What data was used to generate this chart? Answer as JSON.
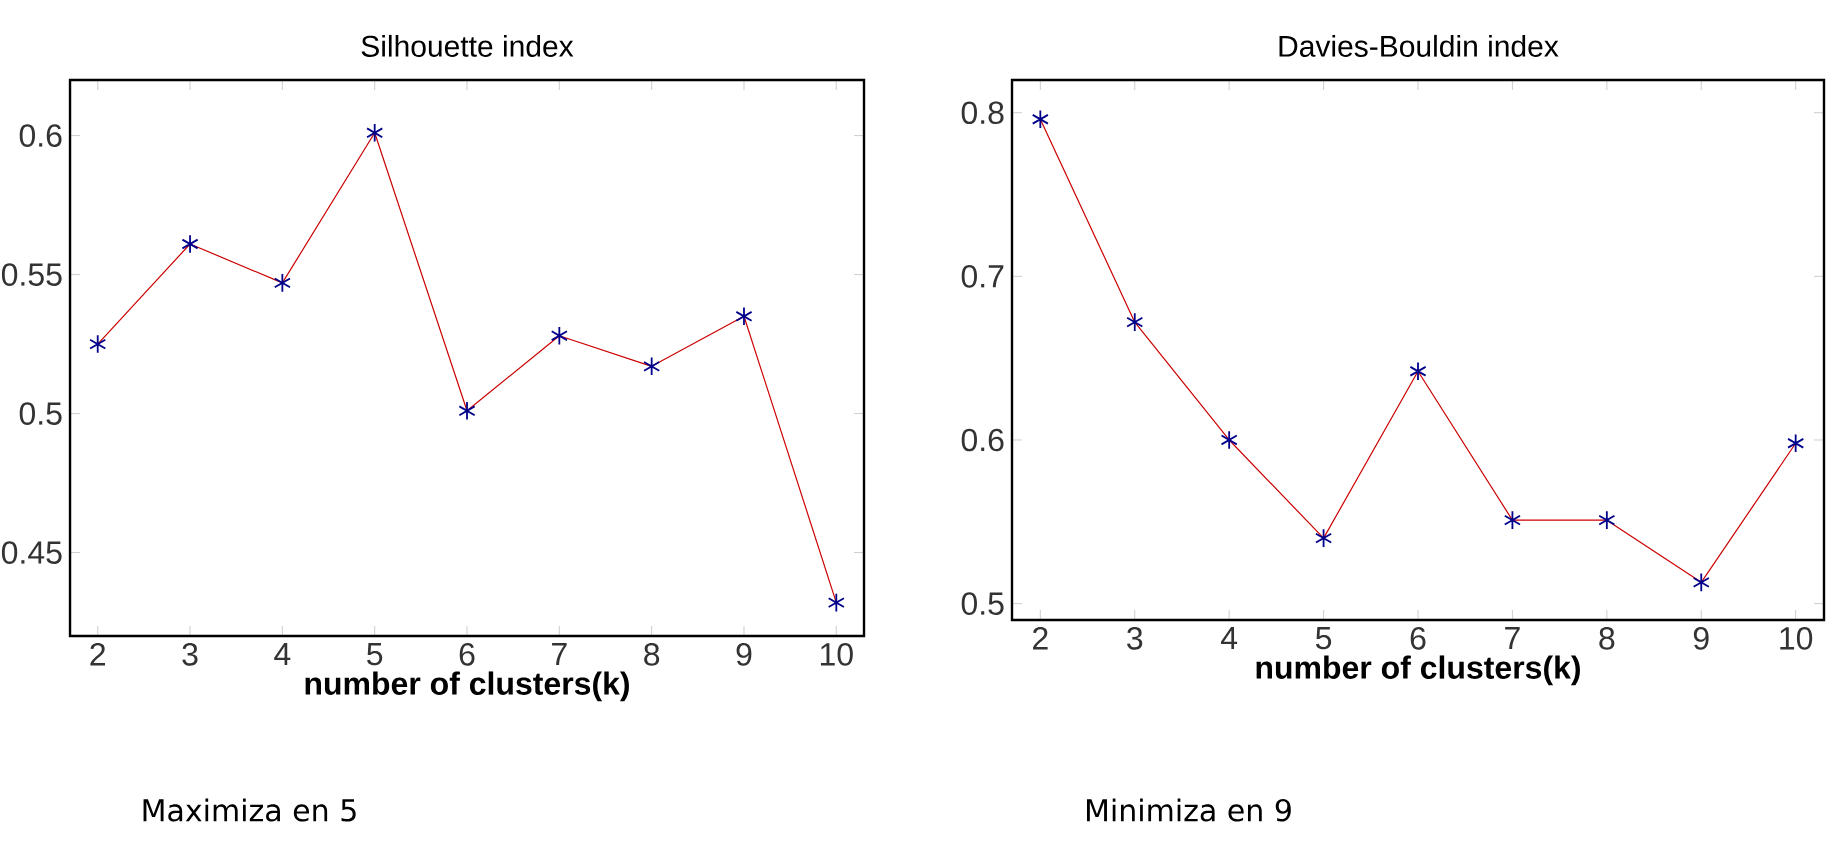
{
  "chart_data": [
    {
      "type": "line",
      "title": "Silhouette index",
      "xlabel": "number of clusters(k)",
      "annotations": [
        "Maximiza en 5"
      ],
      "marker": "cross",
      "x": [
        2,
        3,
        4,
        5,
        6,
        7,
        8,
        9,
        10
      ],
      "xlim": [
        1.7,
        10.3
      ],
      "xticks": [
        2,
        3,
        4,
        5,
        6,
        7,
        8,
        9,
        10
      ],
      "ylim": [
        0.42,
        0.62
      ],
      "yticks": [
        0.45,
        0.5,
        0.55,
        0.6
      ],
      "series": [
        {
          "color": "#00008b",
          "values": [
            0.525,
            0.561,
            0.547,
            0.601,
            0.501,
            0.528,
            0.517,
            0.535,
            0.432
          ]
        }
      ]
    },
    {
      "type": "line",
      "title": "Davies-Bouldin index",
      "xlabel": "number of clusters(k)",
      "annotations": [
        "Minimiza en 9"
      ],
      "marker": "cross",
      "x": [
        2,
        3,
        4,
        5,
        6,
        7,
        8,
        9,
        10
      ],
      "xlim": [
        1.7,
        10.3
      ],
      "xticks": [
        2,
        3,
        4,
        5,
        6,
        7,
        8,
        9,
        10
      ],
      "ylim": [
        0.49,
        0.82
      ],
      "yticks": [
        0.5,
        0.6,
        0.7,
        0.8
      ],
      "series": [
        {
          "color": "#00008b",
          "values": [
            0.796,
            0.672,
            0.6,
            0.54,
            0.642,
            0.551,
            0.551,
            0.513,
            0.598
          ]
        }
      ]
    }
  ]
}
